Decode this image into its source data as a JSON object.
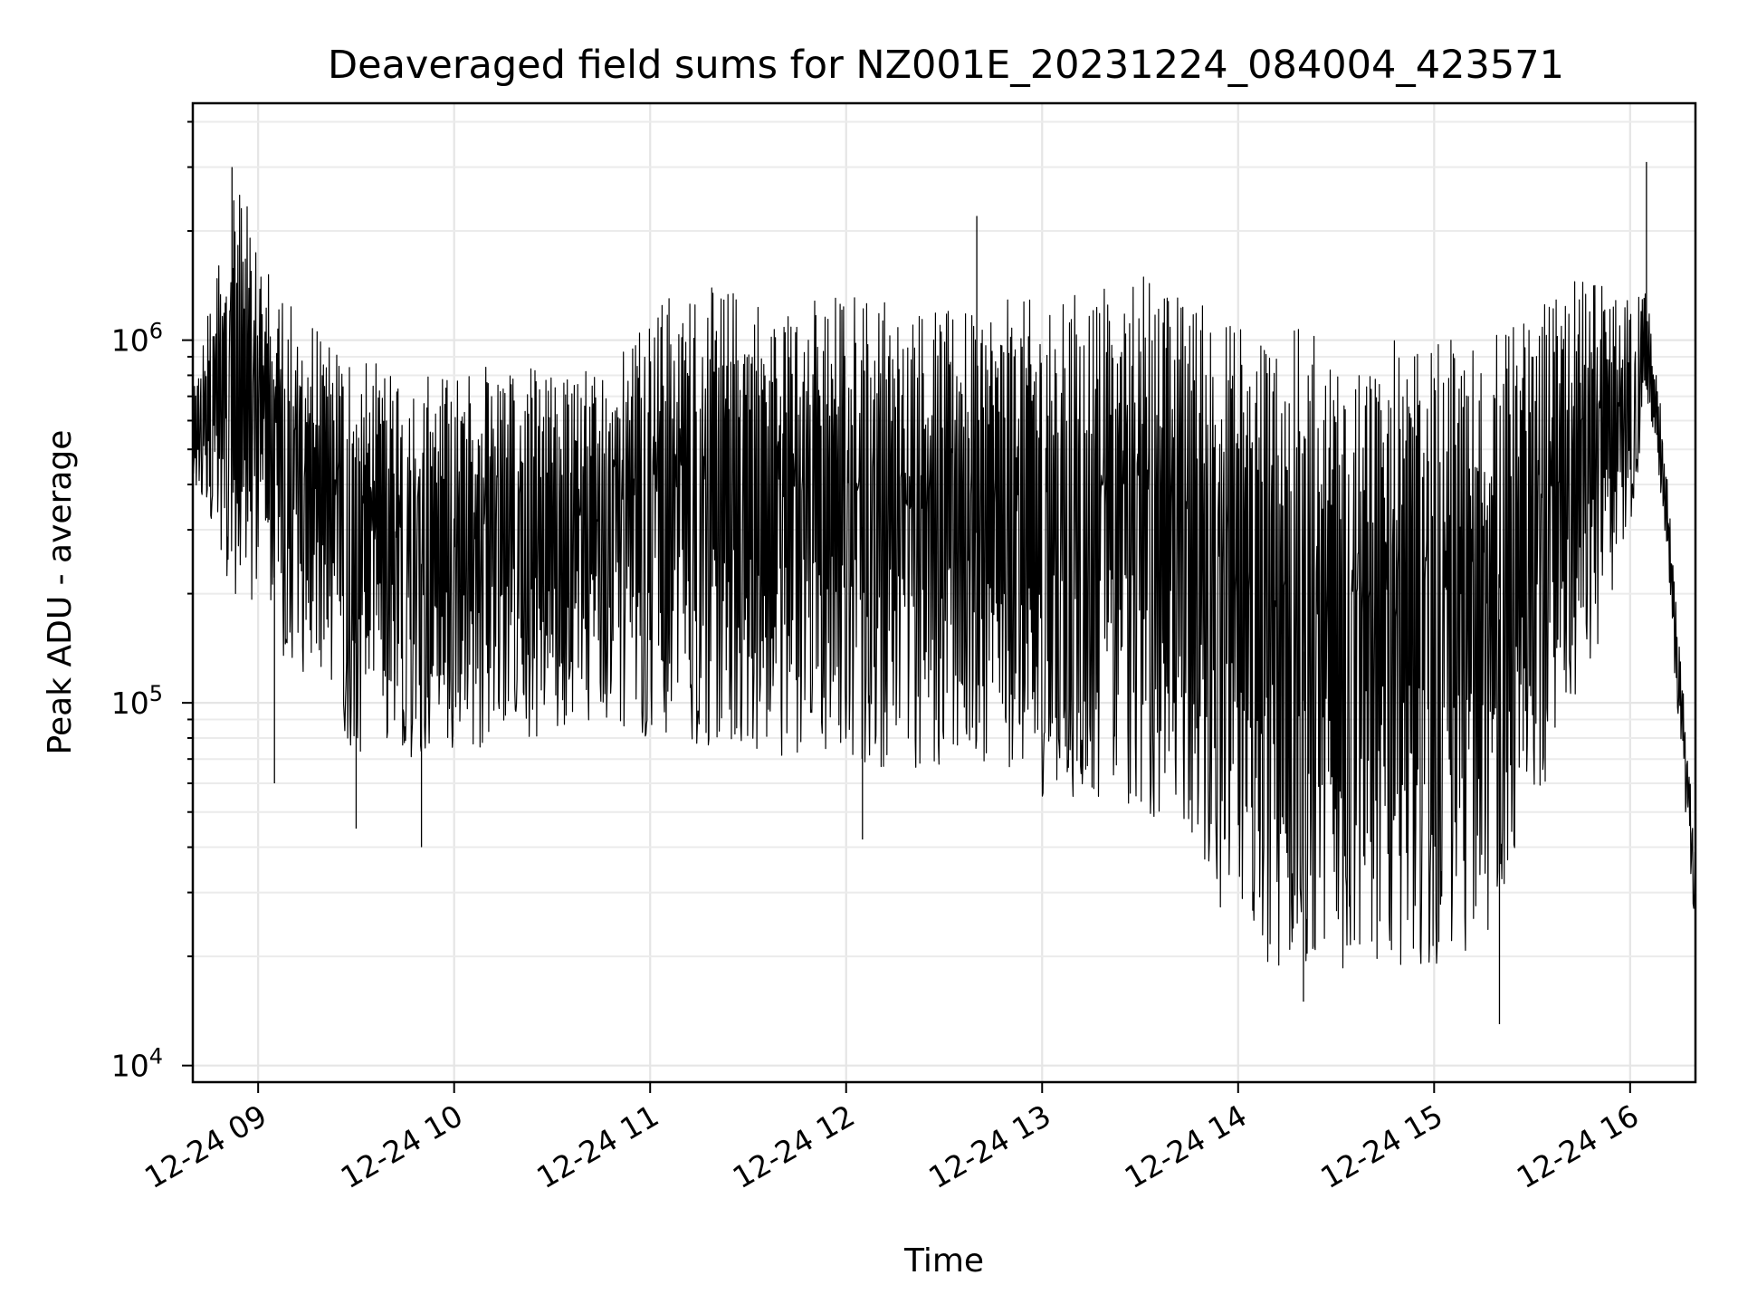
{
  "chart_data": {
    "type": "line",
    "title": "Deaveraged field sums for NZ001E_20231224_084004_423571",
    "xlabel": "Time",
    "ylabel": "Peak ADU - average",
    "yscale": "log",
    "grid": true,
    "ylim": [
      9000,
      4500000
    ],
    "xlim": [
      "2023-12-24 08:40",
      "2023-12-24 16:20"
    ],
    "x_ticks": [
      {
        "time": "2023-12-24 09:00",
        "label": "12-24 09"
      },
      {
        "time": "2023-12-24 10:00",
        "label": "12-24 10"
      },
      {
        "time": "2023-12-24 11:00",
        "label": "12-24 11"
      },
      {
        "time": "2023-12-24 12:00",
        "label": "12-24 12"
      },
      {
        "time": "2023-12-24 13:00",
        "label": "12-24 13"
      },
      {
        "time": "2023-12-24 14:00",
        "label": "12-24 14"
      },
      {
        "time": "2023-12-24 15:00",
        "label": "12-24 15"
      },
      {
        "time": "2023-12-24 16:00",
        "label": "12-24 16"
      }
    ],
    "y_ticks": [
      {
        "value": 10000,
        "base": "10",
        "exp": "4"
      },
      {
        "value": 100000,
        "base": "10",
        "exp": "5"
      },
      {
        "value": 1000000,
        "base": "10",
        "exp": "6"
      }
    ],
    "series": [
      {
        "color": "#000000",
        "envelope": [
          {
            "time": "2023-12-24 08:40",
            "low": 400000,
            "high": 700000
          },
          {
            "time": "2023-12-24 08:52",
            "low": 200000,
            "high": 3000000
          },
          {
            "time": "2023-12-24 09:05",
            "low": 150000,
            "high": 1500000
          },
          {
            "time": "2023-12-24 09:15",
            "low": 100000,
            "high": 1200000
          },
          {
            "time": "2023-12-24 09:30",
            "low": 70000,
            "high": 900000
          },
          {
            "time": "2023-12-24 09:45",
            "low": 70000,
            "high": 850000
          },
          {
            "time": "2023-12-24 10:00",
            "low": 70000,
            "high": 800000
          },
          {
            "time": "2023-12-24 10:15",
            "low": 80000,
            "high": 900000
          },
          {
            "time": "2023-12-24 10:30",
            "low": 80000,
            "high": 800000
          },
          {
            "time": "2023-12-24 10:45",
            "low": 90000,
            "high": 900000
          },
          {
            "time": "2023-12-24 11:00",
            "low": 80000,
            "high": 1300000
          },
          {
            "time": "2023-12-24 11:15",
            "low": 75000,
            "high": 1400000
          },
          {
            "time": "2023-12-24 11:30",
            "low": 75000,
            "high": 1400000
          },
          {
            "time": "2023-12-24 11:45",
            "low": 70000,
            "high": 1300000
          },
          {
            "time": "2023-12-24 12:00",
            "low": 70000,
            "high": 1400000
          },
          {
            "time": "2023-12-24 12:15",
            "low": 65000,
            "high": 1300000
          },
          {
            "time": "2023-12-24 12:30",
            "low": 65000,
            "high": 1200000
          },
          {
            "time": "2023-12-24 12:45",
            "low": 70000,
            "high": 1300000
          },
          {
            "time": "2023-12-24 13:00",
            "low": 55000,
            "high": 1300000
          },
          {
            "time": "2023-12-24 13:15",
            "low": 55000,
            "high": 1400000
          },
          {
            "time": "2023-12-24 13:30",
            "low": 50000,
            "high": 1600000
          },
          {
            "time": "2023-12-24 13:45",
            "low": 45000,
            "high": 1300000
          },
          {
            "time": "2023-12-24 14:00",
            "low": 20000,
            "high": 1200000
          },
          {
            "time": "2023-12-24 14:15",
            "low": 18000,
            "high": 1100000
          },
          {
            "time": "2023-12-24 14:30",
            "low": 18000,
            "high": 1000000
          },
          {
            "time": "2023-12-24 14:45",
            "low": 19000,
            "high": 1000000
          },
          {
            "time": "2023-12-24 15:00",
            "low": 19000,
            "high": 1000000
          },
          {
            "time": "2023-12-24 15:15",
            "low": 20000,
            "high": 1000000
          },
          {
            "time": "2023-12-24 15:30",
            "low": 50000,
            "high": 1200000
          },
          {
            "time": "2023-12-24 15:45",
            "low": 100000,
            "high": 1500000
          },
          {
            "time": "2023-12-24 16:00",
            "low": 300000,
            "high": 1300000
          },
          {
            "time": "2023-12-24 16:05",
            "low": 600000,
            "high": 1400000
          },
          {
            "time": "2023-12-24 16:10",
            "low": 350000,
            "high": 600000
          },
          {
            "time": "2023-12-24 16:15",
            "low": 80000,
            "high": 150000
          },
          {
            "time": "2023-12-24 16:20",
            "low": 23000,
            "high": 40000
          }
        ],
        "notable_points": [
          {
            "time": "2023-12-24 08:52",
            "value": 3000000
          },
          {
            "time": "2023-12-24 09:05",
            "value": 60000
          },
          {
            "time": "2023-12-24 09:30",
            "value": 45000
          },
          {
            "time": "2023-12-24 09:50",
            "value": 40000
          },
          {
            "time": "2023-12-24 12:40",
            "value": 2200000
          },
          {
            "time": "2023-12-24 12:05",
            "value": 42000
          },
          {
            "time": "2023-12-24 14:20",
            "value": 15000
          },
          {
            "time": "2023-12-24 15:20",
            "value": 13000
          },
          {
            "time": "2023-12-24 16:05",
            "value": 3100000
          },
          {
            "time": "2023-12-24 16:20",
            "value": 23000
          }
        ]
      }
    ]
  }
}
